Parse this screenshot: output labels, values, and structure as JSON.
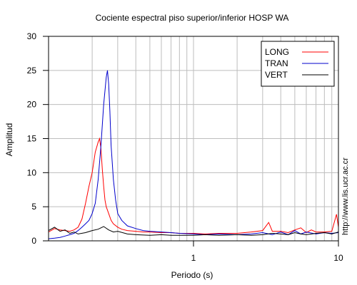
{
  "chart_data": {
    "type": "line",
    "title": "Cociente espectral piso superior/inferior  HOSP WA",
    "xlabel": "Periodo (s)",
    "ylabel": "Amplitud",
    "x_scale": "log",
    "xlim": [
      0.1,
      10
    ],
    "ylim": [
      0,
      30
    ],
    "x_ticks": [
      1,
      10
    ],
    "y_ticks": [
      0,
      5,
      10,
      15,
      20,
      25,
      30
    ],
    "grid": true,
    "legend_position": "top-right",
    "credit": "http://www.lis.ucr.ac.cr",
    "series": [
      {
        "name": "LONG",
        "color": "#ff0000",
        "x": [
          0.1,
          0.11,
          0.12,
          0.13,
          0.14,
          0.15,
          0.16,
          0.17,
          0.18,
          0.19,
          0.2,
          0.21,
          0.22,
          0.225,
          0.23,
          0.235,
          0.24,
          0.245,
          0.25,
          0.26,
          0.27,
          0.28,
          0.3,
          0.32,
          0.35,
          0.4,
          0.45,
          0.5,
          0.6,
          0.7,
          0.8,
          1.0,
          1.2,
          1.5,
          2.0,
          2.5,
          3.0,
          3.3,
          3.5,
          4.0,
          4.5,
          5.0,
          5.5,
          6.0,
          6.5,
          7.0,
          8.0,
          9.0,
          9.7,
          10.0
        ],
        "values": [
          1.3,
          1.8,
          1.6,
          1.5,
          1.4,
          1.6,
          2.0,
          3.2,
          5.5,
          8.0,
          10.0,
          13.0,
          14.5,
          15.0,
          13.5,
          10.5,
          8.0,
          6.0,
          5.0,
          4.0,
          3.0,
          2.5,
          2.0,
          1.7,
          1.5,
          1.4,
          1.3,
          1.3,
          1.2,
          1.2,
          1.1,
          1.1,
          1.0,
          1.1,
          1.1,
          1.3,
          1.5,
          2.7,
          1.4,
          1.4,
          1.2,
          1.6,
          1.9,
          1.2,
          1.6,
          1.3,
          1.3,
          1.4,
          3.9,
          2.0
        ]
      },
      {
        "name": "TRAN",
        "color": "#0000cc",
        "x": [
          0.1,
          0.11,
          0.12,
          0.13,
          0.14,
          0.15,
          0.16,
          0.17,
          0.18,
          0.19,
          0.2,
          0.21,
          0.22,
          0.23,
          0.24,
          0.25,
          0.255,
          0.26,
          0.265,
          0.27,
          0.28,
          0.29,
          0.3,
          0.32,
          0.35,
          0.4,
          0.45,
          0.5,
          0.6,
          0.7,
          0.8,
          1.0,
          1.2,
          1.5,
          2.0,
          2.5,
          3.0,
          3.5,
          4.0,
          4.5,
          5.0,
          5.5,
          6.0,
          7.0,
          8.0,
          9.0,
          10.0
        ],
        "values": [
          0.3,
          0.4,
          0.5,
          0.7,
          0.9,
          1.1,
          1.5,
          2.0,
          2.5,
          3.0,
          4.0,
          5.5,
          9.0,
          14.0,
          20.0,
          24.0,
          25.0,
          23.0,
          19.0,
          14.0,
          9.0,
          6.0,
          4.0,
          3.0,
          2.2,
          1.8,
          1.5,
          1.4,
          1.3,
          1.2,
          1.1,
          1.0,
          0.9,
          1.0,
          0.9,
          1.0,
          1.2,
          0.9,
          1.3,
          0.9,
          1.5,
          1.0,
          1.3,
          1.0,
          1.2,
          1.1,
          1.2
        ]
      },
      {
        "name": "VERT",
        "color": "#000000",
        "x": [
          0.1,
          0.11,
          0.12,
          0.13,
          0.14,
          0.15,
          0.16,
          0.18,
          0.2,
          0.22,
          0.24,
          0.26,
          0.28,
          0.3,
          0.35,
          0.4,
          0.5,
          0.6,
          0.7,
          0.8,
          1.0,
          1.2,
          1.5,
          2.0,
          2.5,
          3.0,
          3.5,
          4.0,
          4.5,
          5.0,
          5.5,
          6.0,
          7.0,
          8.0,
          9.0,
          10.0
        ],
        "values": [
          1.5,
          2.0,
          1.4,
          1.6,
          1.1,
          1.3,
          1.0,
          1.2,
          1.5,
          1.7,
          2.1,
          1.6,
          1.3,
          1.4,
          1.0,
          0.9,
          0.8,
          0.9,
          0.8,
          0.8,
          0.8,
          0.9,
          0.8,
          0.9,
          0.8,
          0.9,
          1.1,
          1.0,
          0.9,
          1.2,
          1.0,
          0.9,
          1.1,
          1.2,
          1.0,
          1.3
        ]
      }
    ]
  }
}
